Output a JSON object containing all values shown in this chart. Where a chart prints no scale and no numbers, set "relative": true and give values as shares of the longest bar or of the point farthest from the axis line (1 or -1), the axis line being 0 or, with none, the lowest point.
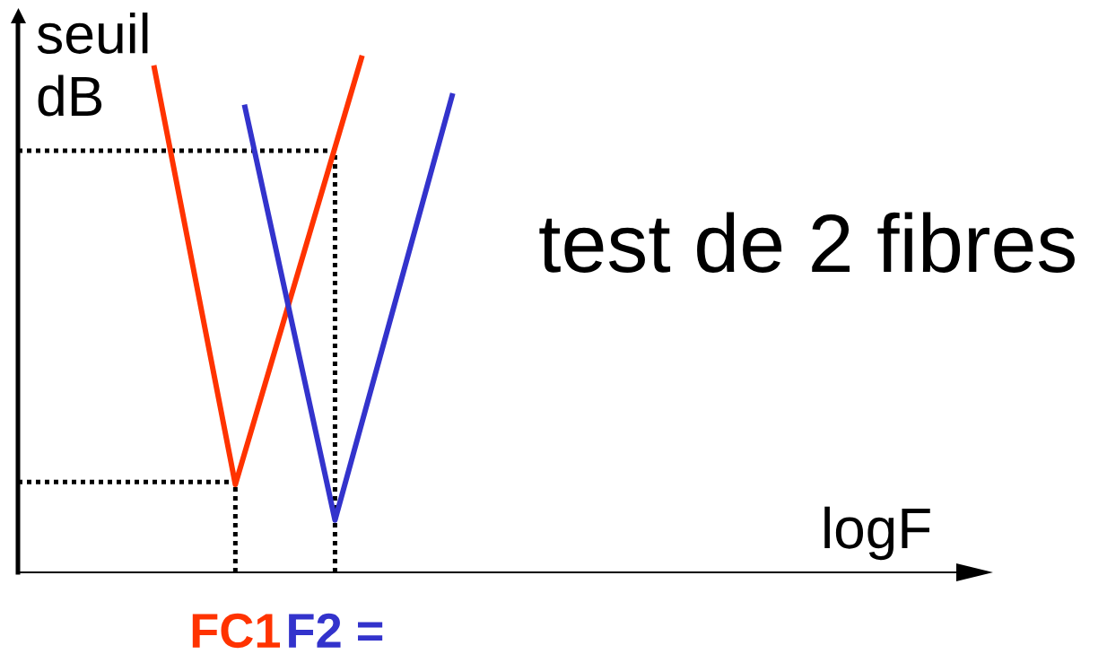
{
  "chart_data": {
    "type": "line",
    "title": "test de 2 fibres",
    "ylabel": "seuil\ndB",
    "annotations": [
      "logF"
    ],
    "relative": true,
    "tick_labels": "x",
    "line_style": "solid",
    "categories": [
      null,
      null,
      null,
      null,
      null,
      null,
      null,
      null,
      null,
      null,
      null,
      null,
      null,
      null,
      null,
      null,
      null,
      null,
      null,
      null,
      null,
      null,
      null,
      null,
      "FC1",
      null,
      null,
      null,
      null,
      null,
      null,
      null,
      null,
      null,
      null,
      "F2 =",
      null,
      null,
      null,
      null,
      null,
      null,
      null,
      null,
      null,
      null,
      null,
      null,
      null
    ],
    "series": [
      {
        "color": "#ff3300",
        "values": [
          null,
          null,
          null,
          null,
          null,
          null,
          null,
          null,
          null,
          null,
          null,
          null,
          null,
          null,
          null,
          0.981,
          null,
          null,
          null,
          null,
          null,
          null,
          null,
          null,
          0.17,
          null,
          null,
          null,
          null,
          null,
          null,
          null,
          null,
          null,
          null,
          null,
          null,
          null,
          1.0,
          null,
          null,
          null,
          null,
          null,
          null,
          null,
          null,
          null,
          null
        ]
      },
      {
        "color": "#3333cc",
        "values": [
          null,
          null,
          null,
          null,
          null,
          null,
          null,
          null,
          null,
          null,
          null,
          null,
          null,
          null,
          null,
          null,
          null,
          null,
          null,
          null,
          null,
          null,
          null,
          null,
          null,
          0.905,
          null,
          null,
          null,
          null,
          null,
          null,
          null,
          null,
          null,
          0.101,
          null,
          null,
          null,
          null,
          null,
          null,
          null,
          null,
          null,
          null,
          null,
          null,
          0.927
        ]
      }
    ],
    "ref_lines": [
      {
        "axis": "y",
        "value": 0.816,
        "color": "#000000",
        "line_style": "dotted"
      },
      {
        "axis": "x",
        "value": "F2 =",
        "color": "#000000",
        "line_style": "dotted"
      },
      {
        "axis": "y",
        "value": 0.175,
        "color": "#000000",
        "line_style": "dotted"
      },
      {
        "axis": "x",
        "value": "FC1",
        "color": "#000000",
        "line_style": "dotted"
      }
    ]
  }
}
